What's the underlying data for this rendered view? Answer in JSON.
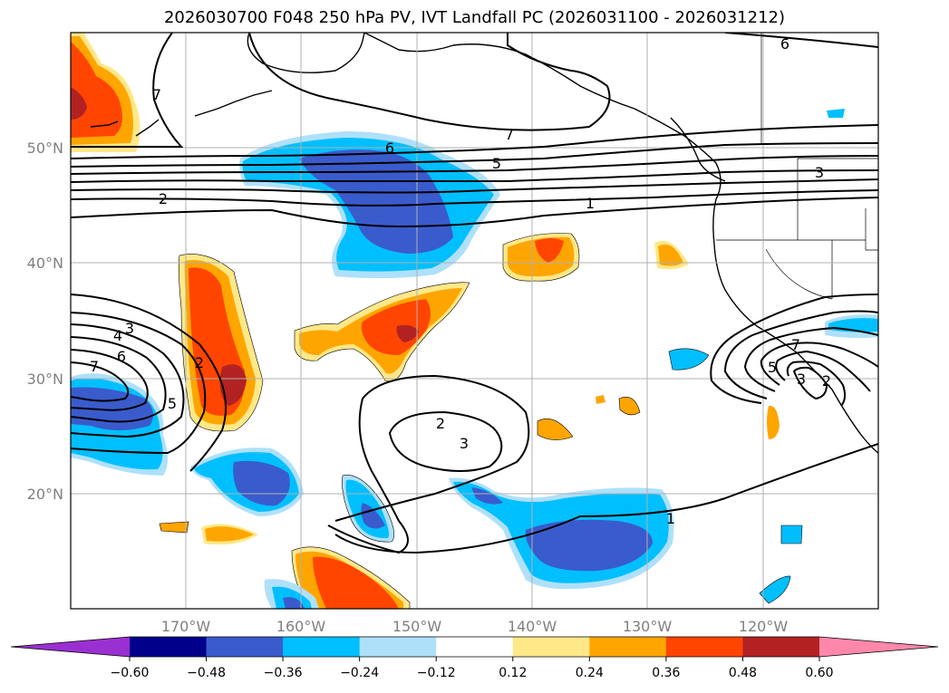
{
  "title": "2026030700 F048 250 hPa PV, IVT Landfall PC (2026031100 - 2026031212)",
  "map": {
    "lon_labels": [
      "170°W",
      "160°W",
      "150°W",
      "140°W",
      "130°W",
      "120°W"
    ],
    "lat_labels": [
      "50°N",
      "40°N",
      "30°N",
      "20°N"
    ],
    "gridlines": true,
    "contour_labels": [
      "7",
      "6",
      "7",
      "5",
      "2",
      "1",
      "6",
      "3",
      "3",
      "4",
      "6",
      "7",
      "2",
      "5",
      "2",
      "3",
      "1",
      "5",
      "7",
      "3",
      "2"
    ]
  },
  "colorbar": {
    "ticks": [
      "−0.60",
      "−0.48",
      "−0.36",
      "−0.24",
      "−0.12",
      "0.12",
      "0.24",
      "0.36",
      "0.48",
      "0.60"
    ],
    "colors": [
      "#9b30d0",
      "#00008b",
      "#3a5bcc",
      "#00bfff",
      "#afe0fa",
      "#ffffff",
      "#ffe888",
      "#ffa500",
      "#ff4500",
      "#b22222",
      "#ff88aa"
    ]
  }
}
